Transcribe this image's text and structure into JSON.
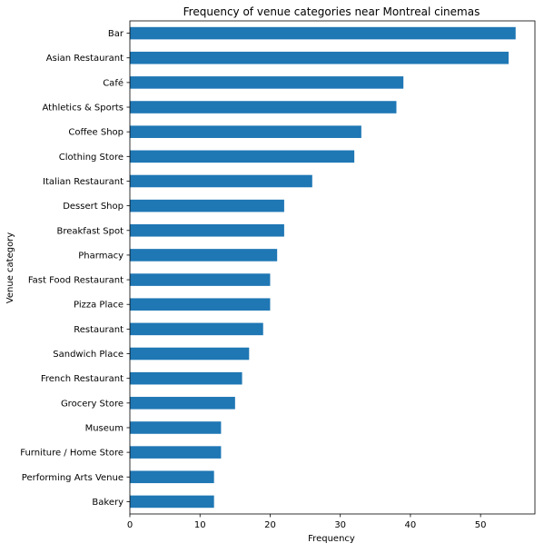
{
  "chart_data": {
    "type": "bar",
    "orientation": "horizontal",
    "title": "Frequency of venue categories near Montreal cinemas",
    "xlabel": "Frequency",
    "ylabel": "Venue category",
    "xlim": [
      0,
      57.75
    ],
    "x_ticks": [
      "0",
      "10",
      "20",
      "30",
      "40",
      "50"
    ],
    "grid": false,
    "bar_color": "#1f77b4",
    "categories": [
      "Bar",
      "Asian Restaurant",
      "Café",
      "Athletics & Sports",
      "Coffee Shop",
      "Clothing Store",
      "Italian Restaurant",
      "Dessert Shop",
      "Breakfast Spot",
      "Pharmacy",
      "Fast Food Restaurant",
      "Pizza Place",
      "Restaurant",
      "Sandwich Place",
      "French Restaurant",
      "Grocery Store",
      "Museum",
      "Furniture / Home Store",
      "Performing Arts Venue",
      "Bakery"
    ],
    "values": [
      55,
      54,
      39,
      38,
      33,
      32,
      26,
      22,
      22,
      21,
      20,
      20,
      19,
      17,
      16,
      15,
      13,
      13,
      12,
      12
    ]
  }
}
